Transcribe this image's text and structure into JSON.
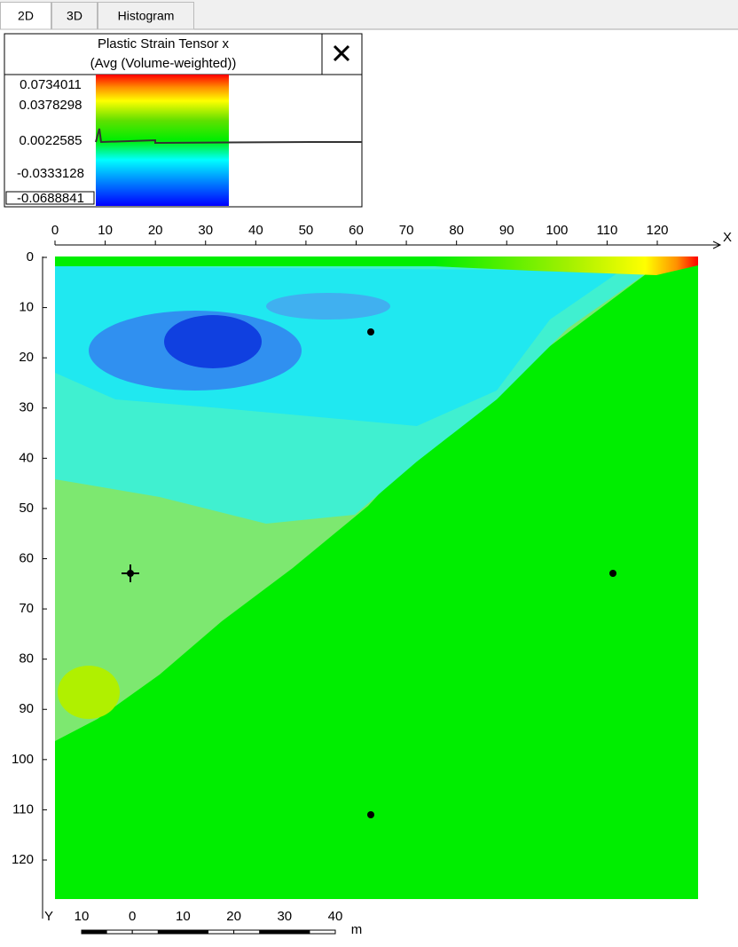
{
  "tabs": [
    "2D",
    "3D",
    "Histogram"
  ],
  "legend": {
    "title": "Plastic Strain Tensor x",
    "subtitle": "(Avg (Volume-weighted))",
    "labels": [
      "0.0734011",
      "0.0378298",
      "0.0022585",
      "-0.0333128",
      "-0.0688841"
    ]
  },
  "plot": {
    "x_label": "X",
    "y_label": "Y",
    "xticks": [
      0,
      10,
      20,
      30,
      40,
      50,
      60,
      70,
      80,
      90,
      100,
      110,
      120
    ],
    "yticks": [
      0,
      10,
      20,
      30,
      40,
      50,
      60,
      70,
      80,
      90,
      100,
      110,
      120
    ]
  },
  "scale_bar": {
    "labels": [
      "10",
      "0",
      "10",
      "20",
      "30",
      "40"
    ],
    "unit": "m"
  }
}
